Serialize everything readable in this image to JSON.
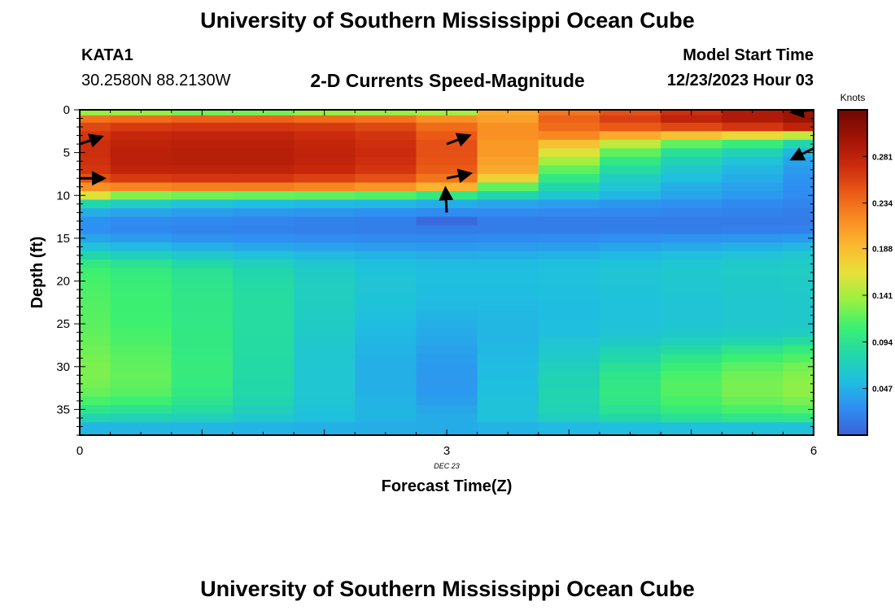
{
  "header": {
    "title": "University of Southern Mississippi Ocean Cube",
    "station": "KATA1",
    "coords": "30.2580N  88.2130W",
    "subtitle": "2-D Currents Speed-Magnitude",
    "model_label": "Model Start Time",
    "model_time": "12/23/2023 Hour 03"
  },
  "footer": {
    "title": "University of Southern Mississippi Ocean Cube"
  },
  "chart_data": {
    "type": "heatmap",
    "title": "2-D Currents Speed-Magnitude",
    "xlabel": "Forecast Time(Z)",
    "ylabel": "Depth (ft)",
    "x_date_label": "DEC 23",
    "xlim": [
      0,
      6
    ],
    "ylim": [
      38,
      0
    ],
    "x_ticks": [
      0,
      3,
      6
    ],
    "y_ticks": [
      0,
      5,
      10,
      15,
      20,
      25,
      30,
      35
    ],
    "colorbar": {
      "label": "Knots",
      "ticks": [
        "0.281",
        "0.234",
        "0.188",
        "0.141",
        "0.094",
        "0.047"
      ],
      "tick_values": [
        0.281,
        0.234,
        0.188,
        0.141,
        0.094,
        0.047
      ],
      "range": [
        0.0,
        0.328
      ],
      "colors": [
        "#3a62d8",
        "#2f8ef2",
        "#1fbfe0",
        "#22d8a8",
        "#3cf070",
        "#9af040",
        "#e8e03a",
        "#fbb830",
        "#f88a22",
        "#e95716",
        "#c9280c",
        "#9e1205",
        "#6e0802"
      ]
    },
    "time_columns": [
      0,
      0.5,
      1,
      1.5,
      2,
      2.5,
      3,
      3.5,
      4,
      4.5,
      5,
      5.5,
      6
    ],
    "depth_levels": [
      0.3,
      1,
      2,
      3,
      4,
      5,
      6,
      7,
      8,
      9,
      10,
      11,
      12,
      13,
      14,
      15,
      16,
      17,
      18,
      19,
      20,
      21,
      22,
      23,
      24,
      25,
      26,
      27,
      28,
      29,
      30,
      31,
      32,
      33,
      34,
      35,
      36,
      37
    ],
    "speed_knots": [
      [
        0.135,
        0.135,
        0.125,
        0.125,
        0.135,
        0.135,
        0.14,
        0.2,
        0.23,
        0.25,
        0.27,
        0.29,
        0.3
      ],
      [
        0.23,
        0.235,
        0.24,
        0.24,
        0.235,
        0.23,
        0.215,
        0.205,
        0.24,
        0.26,
        0.28,
        0.29,
        0.3
      ],
      [
        0.255,
        0.262,
        0.265,
        0.265,
        0.262,
        0.255,
        0.235,
        0.215,
        0.235,
        0.245,
        0.255,
        0.265,
        0.28
      ],
      [
        0.265,
        0.275,
        0.278,
        0.278,
        0.272,
        0.265,
        0.245,
        0.215,
        0.22,
        0.2,
        0.185,
        0.17,
        0.15
      ],
      [
        0.27,
        0.28,
        0.283,
        0.283,
        0.277,
        0.27,
        0.25,
        0.21,
        0.185,
        0.15,
        0.12,
        0.105,
        0.08
      ],
      [
        0.27,
        0.283,
        0.285,
        0.285,
        0.28,
        0.272,
        0.25,
        0.21,
        0.16,
        0.12,
        0.09,
        0.075,
        0.05
      ],
      [
        0.268,
        0.282,
        0.284,
        0.284,
        0.278,
        0.27,
        0.248,
        0.205,
        0.14,
        0.1,
        0.075,
        0.06,
        0.04
      ],
      [
        0.265,
        0.278,
        0.28,
        0.28,
        0.274,
        0.266,
        0.244,
        0.2,
        0.12,
        0.085,
        0.065,
        0.05,
        0.035
      ],
      [
        0.25,
        0.262,
        0.265,
        0.265,
        0.258,
        0.25,
        0.23,
        0.175,
        0.1,
        0.07,
        0.055,
        0.045,
        0.03
      ],
      [
        0.215,
        0.222,
        0.225,
        0.225,
        0.22,
        0.212,
        0.195,
        0.12,
        0.08,
        0.06,
        0.045,
        0.038,
        0.028
      ],
      [
        0.16,
        0.13,
        0.125,
        0.122,
        0.12,
        0.115,
        0.1,
        0.08,
        0.062,
        0.05,
        0.04,
        0.034,
        0.026
      ],
      [
        0.08,
        0.07,
        0.06,
        0.055,
        0.052,
        0.05,
        0.045,
        0.04,
        0.036,
        0.032,
        0.028,
        0.024,
        0.022
      ],
      [
        0.045,
        0.04,
        0.036,
        0.033,
        0.031,
        0.029,
        0.026,
        0.026,
        0.025,
        0.024,
        0.022,
        0.02,
        0.018
      ],
      [
        0.03,
        0.026,
        0.024,
        0.022,
        0.02,
        0.018,
        0.005,
        0.016,
        0.016,
        0.016,
        0.016,
        0.016,
        0.016
      ],
      [
        0.028,
        0.024,
        0.022,
        0.02,
        0.019,
        0.018,
        0.017,
        0.017,
        0.017,
        0.018,
        0.018,
        0.019,
        0.02
      ],
      [
        0.04,
        0.035,
        0.03,
        0.028,
        0.026,
        0.025,
        0.024,
        0.025,
        0.026,
        0.028,
        0.03,
        0.032,
        0.034
      ],
      [
        0.058,
        0.052,
        0.046,
        0.042,
        0.038,
        0.036,
        0.034,
        0.035,
        0.037,
        0.04,
        0.043,
        0.046,
        0.05
      ],
      [
        0.08,
        0.072,
        0.065,
        0.058,
        0.052,
        0.048,
        0.045,
        0.046,
        0.048,
        0.052,
        0.056,
        0.06,
        0.063
      ],
      [
        0.1,
        0.092,
        0.082,
        0.072,
        0.063,
        0.056,
        0.052,
        0.053,
        0.055,
        0.058,
        0.062,
        0.066,
        0.068
      ],
      [
        0.11,
        0.102,
        0.092,
        0.08,
        0.068,
        0.059,
        0.055,
        0.055,
        0.057,
        0.06,
        0.064,
        0.067,
        0.069
      ],
      [
        0.112,
        0.105,
        0.095,
        0.083,
        0.07,
        0.06,
        0.055,
        0.055,
        0.057,
        0.06,
        0.063,
        0.066,
        0.068
      ],
      [
        0.114,
        0.107,
        0.097,
        0.085,
        0.071,
        0.06,
        0.054,
        0.054,
        0.056,
        0.059,
        0.062,
        0.065,
        0.067
      ],
      [
        0.115,
        0.108,
        0.098,
        0.086,
        0.071,
        0.059,
        0.053,
        0.053,
        0.055,
        0.058,
        0.061,
        0.064,
        0.066
      ],
      [
        0.116,
        0.108,
        0.098,
        0.086,
        0.07,
        0.058,
        0.051,
        0.052,
        0.054,
        0.057,
        0.06,
        0.063,
        0.065
      ],
      [
        0.117,
        0.109,
        0.099,
        0.086,
        0.069,
        0.056,
        0.049,
        0.051,
        0.054,
        0.057,
        0.06,
        0.063,
        0.065
      ],
      [
        0.118,
        0.11,
        0.099,
        0.086,
        0.068,
        0.054,
        0.046,
        0.05,
        0.055,
        0.058,
        0.061,
        0.064,
        0.066
      ],
      [
        0.12,
        0.112,
        0.1,
        0.086,
        0.067,
        0.052,
        0.043,
        0.05,
        0.056,
        0.06,
        0.064,
        0.068,
        0.07
      ],
      [
        0.122,
        0.114,
        0.1,
        0.085,
        0.065,
        0.05,
        0.041,
        0.05,
        0.06,
        0.066,
        0.072,
        0.078,
        0.085
      ],
      [
        0.124,
        0.116,
        0.101,
        0.085,
        0.064,
        0.048,
        0.038,
        0.051,
        0.064,
        0.074,
        0.084,
        0.094,
        0.102
      ],
      [
        0.126,
        0.118,
        0.102,
        0.084,
        0.063,
        0.047,
        0.036,
        0.052,
        0.068,
        0.082,
        0.096,
        0.108,
        0.115
      ],
      [
        0.128,
        0.12,
        0.103,
        0.084,
        0.062,
        0.046,
        0.034,
        0.053,
        0.072,
        0.09,
        0.106,
        0.118,
        0.125
      ],
      [
        0.128,
        0.121,
        0.103,
        0.083,
        0.062,
        0.046,
        0.033,
        0.054,
        0.075,
        0.096,
        0.113,
        0.124,
        0.13
      ],
      [
        0.126,
        0.12,
        0.102,
        0.082,
        0.062,
        0.046,
        0.033,
        0.055,
        0.077,
        0.099,
        0.116,
        0.127,
        0.133
      ],
      [
        0.122,
        0.117,
        0.1,
        0.081,
        0.062,
        0.047,
        0.034,
        0.056,
        0.078,
        0.1,
        0.116,
        0.127,
        0.133
      ],
      [
        0.112,
        0.108,
        0.095,
        0.078,
        0.061,
        0.048,
        0.037,
        0.057,
        0.078,
        0.098,
        0.112,
        0.122,
        0.127
      ],
      [
        0.096,
        0.093,
        0.085,
        0.072,
        0.059,
        0.049,
        0.041,
        0.058,
        0.076,
        0.092,
        0.104,
        0.112,
        0.116
      ],
      [
        0.078,
        0.076,
        0.072,
        0.064,
        0.056,
        0.049,
        0.044,
        0.057,
        0.07,
        0.082,
        0.09,
        0.096,
        0.098
      ],
      [
        0.05,
        0.05,
        0.05,
        0.049,
        0.047,
        0.045,
        0.044,
        0.048,
        0.052,
        0.055,
        0.057,
        0.058,
        0.058
      ]
    ],
    "arrows": [
      {
        "time": 0,
        "depth": 4,
        "u": 0.9,
        "v": 0.3
      },
      {
        "time": 0,
        "depth": 8,
        "u": 1.0,
        "v": 0.0
      },
      {
        "time": 3,
        "depth": 4,
        "u": 0.93,
        "v": 0.35
      },
      {
        "time": 3,
        "depth": 8,
        "u": 0.97,
        "v": 0.2
      },
      {
        "time": 3,
        "depth": 12,
        "u": -0.05,
        "v": 1.0
      },
      {
        "time": 6,
        "depth": 4.5,
        "u": -0.9,
        "v": -0.45
      },
      {
        "time": 6,
        "depth": 0,
        "u": -0.9,
        "v": -0.1
      }
    ]
  }
}
